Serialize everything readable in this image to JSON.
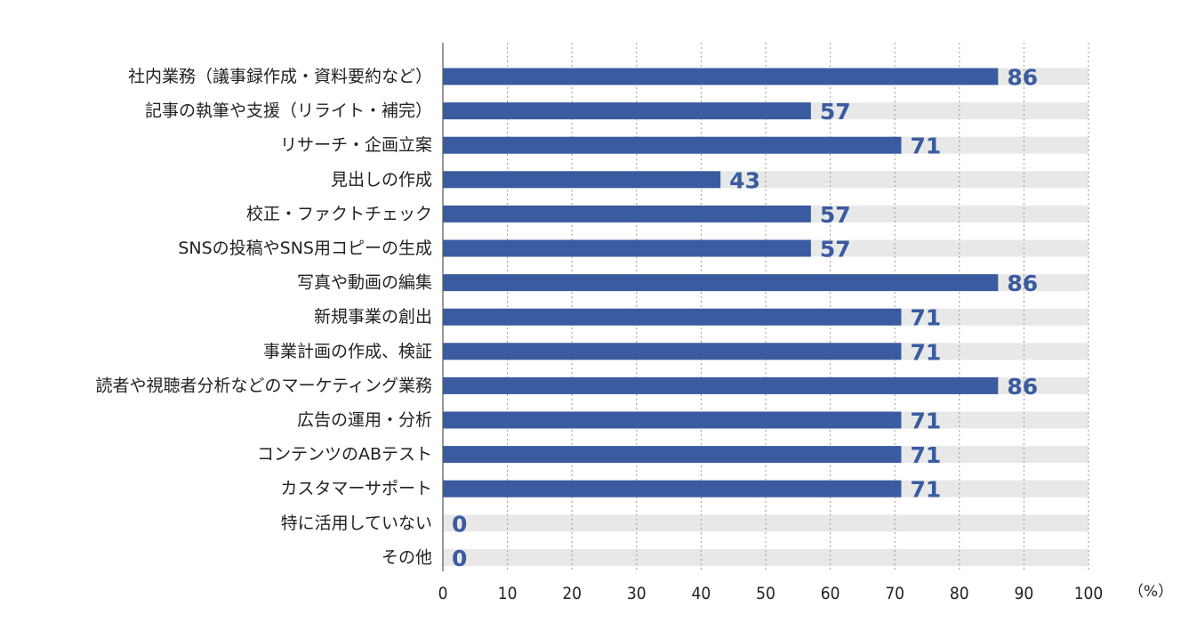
{
  "chart_data": {
    "type": "bar",
    "orientation": "horizontal",
    "categories": [
      "社内業務（議事録作成・資料要約など）",
      "記事の執筆や支援（リライト・補完）",
      "リサーチ・企画立案",
      "見出しの作成",
      "校正・ファクトチェック",
      "SNSの投稿やSNS用コピーの生成",
      "写真や動画の編集",
      "新規事業の創出",
      "事業計画の作成、検証",
      "読者や視聴者分析などのマーケティング業務",
      "広告の運用・分析",
      "コンテンツのABテスト",
      "カスタマーサポート",
      "特に活用していない",
      "その他"
    ],
    "values": [
      86,
      57,
      71,
      43,
      57,
      57,
      86,
      71,
      71,
      86,
      71,
      71,
      71,
      0,
      0
    ],
    "xlim": [
      0,
      100
    ],
    "xticks": [
      "0",
      "10",
      "20",
      "30",
      "40",
      "50",
      "60",
      "70",
      "80",
      "90",
      "100"
    ],
    "unit_label": "（%）",
    "grid": "vertical-dotted",
    "colors": {
      "bar": "#3a5ba0",
      "track": "#e8e8e8",
      "value_text": "#3a5ba0",
      "grid": "#9a9a9a",
      "axis": "#555555"
    }
  }
}
